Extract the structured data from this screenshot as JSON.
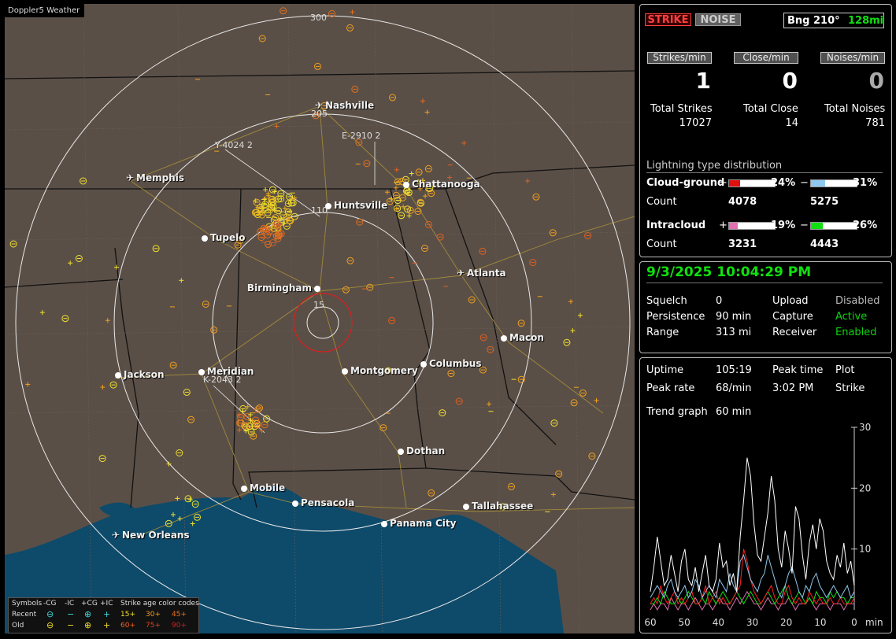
{
  "map": {
    "title": "Doppler5 Weather",
    "range_labels": [
      "300",
      "205",
      "110",
      "15"
    ],
    "distance_markers": [
      "Y-4024 2",
      "E-2910 2",
      "K-2043 2"
    ],
    "cities": [
      {
        "name": "Nashville",
        "icon": "airport-icon"
      },
      {
        "name": "Memphis",
        "icon": "airport-icon"
      },
      {
        "name": "Chattanooga",
        "icon": "dot"
      },
      {
        "name": "Huntsville",
        "icon": "dot"
      },
      {
        "name": "Tupelo",
        "icon": "dot"
      },
      {
        "name": "Atlanta",
        "icon": "airport-icon"
      },
      {
        "name": "Birmingham",
        "icon": "dot"
      },
      {
        "name": "Macon",
        "icon": "dot"
      },
      {
        "name": "Jackson",
        "icon": "dot"
      },
      {
        "name": "Meridian",
        "icon": "dot"
      },
      {
        "name": "Montgomery",
        "icon": "dot"
      },
      {
        "name": "Columbus",
        "icon": "dot"
      },
      {
        "name": "Dothan",
        "icon": "dot"
      },
      {
        "name": "Mobile",
        "icon": "dot"
      },
      {
        "name": "Pensacola",
        "icon": "dot"
      },
      {
        "name": "Tallahassee",
        "icon": "dot"
      },
      {
        "name": "Panama City",
        "icon": "dot"
      },
      {
        "name": "New Orleans",
        "icon": "airport-icon"
      }
    ],
    "legend": {
      "symbols_label": "Symbols",
      "minus_cg": "-CG",
      "minus_ic": "-IC",
      "plus_cg": "+CG",
      "plus_ic": "+IC",
      "age_label": "Strike age color codes",
      "recent": "Recent",
      "old": "Old",
      "recent_ages": [
        "15+",
        "30+",
        "45+"
      ],
      "old_ages": [
        "60+",
        "75+",
        "90+"
      ]
    },
    "colors": {
      "land": "#5a4f47",
      "water": "#0e4a6a",
      "ring": "#e8e8e8",
      "close_ring": "#d62020"
    }
  },
  "status": {
    "strike_button": "STRIKE",
    "noise_button": "NOISE",
    "bearing": "Bng 210°",
    "distance": "128mi",
    "rates": [
      {
        "label": "Strikes/min",
        "value": "1"
      },
      {
        "label": "Close/min",
        "value": "0"
      },
      {
        "label": "Noises/min",
        "value": "0"
      }
    ],
    "totals": [
      {
        "label": "Total Strikes",
        "value": "17027"
      },
      {
        "label": "Total Close",
        "value": "14"
      },
      {
        "label": "Total Noises",
        "value": "781"
      }
    ],
    "distribution_title": "Lightning type distribution",
    "cloud_ground_label": "Cloud-ground",
    "intracloud_label": "Intracloud",
    "count_label": "Count",
    "plus": "+",
    "minus": "−",
    "cg_pos": {
      "pct_text": "24%",
      "fraction": 0.24,
      "count": "4078",
      "color": "#e01010"
    },
    "cg_neg": {
      "pct_text": "31%",
      "fraction": 0.31,
      "count": "5275",
      "color": "#8ec8f0"
    },
    "ic_pos": {
      "pct_text": "19%",
      "fraction": 0.19,
      "count": "3231",
      "color": "#e070b0"
    },
    "ic_neg": {
      "pct_text": "26%",
      "fraction": 0.26,
      "count": "4443",
      "color": "#10e010"
    }
  },
  "settings": {
    "datetime": "9/3/2025 10:04:29 PM",
    "rows": [
      {
        "k1": "Squelch",
        "v1": "0",
        "k2": "Upload",
        "v2": "Disabled",
        "v2_color": "#bbbbbb"
      },
      {
        "k1": "Persistence",
        "v1": "90 min",
        "k2": "Capture",
        "v2": "Active",
        "v2_color": "#10d010"
      },
      {
        "k1": "Range",
        "v1": "313 mi",
        "k2": "Receiver",
        "v2": "Enabled",
        "v2_color": "#10d010"
      }
    ]
  },
  "stats": {
    "uptime_label": "Uptime",
    "uptime": "105:19",
    "peak_time_label": "Peak time",
    "plot_label": "Plot",
    "peak_rate_label": "Peak rate",
    "peak_rate": "68/min",
    "peak_time": "3:02 PM",
    "plot_value": "Strike",
    "trend_label": "Trend graph",
    "trend_value": "60 min"
  },
  "chart_data": {
    "type": "line",
    "title": "",
    "xlabel": "min",
    "ylabel": "",
    "x_ticks": [
      "60",
      "50",
      "40",
      "30",
      "20",
      "10",
      "0"
    ],
    "y_ticks": [
      "30",
      "20",
      "10"
    ],
    "ylim": [
      0,
      30
    ],
    "xlim": [
      60,
      0
    ],
    "series": [
      {
        "color": "#ffffff",
        "values": [
          3,
          7,
          12,
          8,
          4,
          5,
          9,
          6,
          3,
          8,
          10,
          5,
          4,
          7,
          3,
          6,
          9,
          4,
          3,
          5,
          11,
          7,
          8,
          4,
          6,
          3,
          12,
          18,
          25,
          22,
          14,
          9,
          8,
          12,
          16,
          22,
          18,
          10,
          7,
          13,
          10,
          6,
          17,
          15,
          9,
          5,
          11,
          14,
          10,
          15,
          13,
          8,
          6,
          5,
          9,
          7,
          11,
          6,
          8,
          4
        ]
      },
      {
        "color": "#8ec8f0",
        "values": [
          2,
          3,
          4,
          3,
          2,
          4,
          5,
          3,
          2,
          3,
          4,
          2,
          3,
          5,
          4,
          2,
          3,
          4,
          3,
          2,
          5,
          4,
          3,
          6,
          4,
          3,
          8,
          9,
          7,
          5,
          4,
          3,
          5,
          6,
          9,
          7,
          5,
          3,
          2,
          4,
          6,
          7,
          5,
          3,
          2,
          4,
          3,
          5,
          6,
          4,
          3,
          2,
          3,
          4,
          3,
          2,
          3,
          4,
          2,
          3
        ]
      },
      {
        "color": "#ff2020",
        "values": [
          1,
          2,
          1,
          4,
          2,
          1,
          2,
          3,
          1,
          2,
          1,
          2,
          3,
          1,
          1,
          2,
          4,
          1,
          2,
          3,
          1,
          2,
          1,
          1,
          2,
          3,
          4,
          10,
          8,
          5,
          3,
          2,
          1,
          2,
          3,
          4,
          2,
          1,
          1,
          3,
          4,
          2,
          1,
          2,
          1,
          1,
          3,
          2,
          1,
          2,
          1,
          1,
          2,
          1,
          1,
          2,
          1,
          1,
          1,
          2
        ]
      },
      {
        "color": "#10e010",
        "values": [
          1,
          1,
          2,
          1,
          3,
          2,
          1,
          1,
          2,
          1,
          2,
          3,
          2,
          1,
          1,
          2,
          1,
          3,
          2,
          1,
          2,
          3,
          2,
          1,
          2,
          3,
          2,
          1,
          2,
          3,
          2,
          1,
          1,
          2,
          3,
          2,
          1,
          2,
          3,
          4,
          2,
          1,
          2,
          3,
          2,
          1,
          2,
          1,
          3,
          2,
          2,
          1,
          3,
          2,
          3,
          2,
          2,
          1,
          2,
          2
        ]
      },
      {
        "color": "#e070b0",
        "values": [
          0,
          1,
          0,
          1,
          1,
          0,
          2,
          1,
          0,
          1,
          1,
          0,
          1,
          2,
          1,
          0,
          1,
          1,
          0,
          1,
          2,
          1,
          1,
          0,
          1,
          2,
          1,
          2,
          3,
          2,
          1,
          1,
          0,
          1,
          2,
          1,
          1,
          0,
          1,
          1,
          2,
          1,
          0,
          1,
          1,
          1,
          2,
          1,
          0,
          1,
          1,
          1,
          0,
          1,
          1,
          1,
          0,
          1,
          1,
          1
        ]
      }
    ]
  }
}
